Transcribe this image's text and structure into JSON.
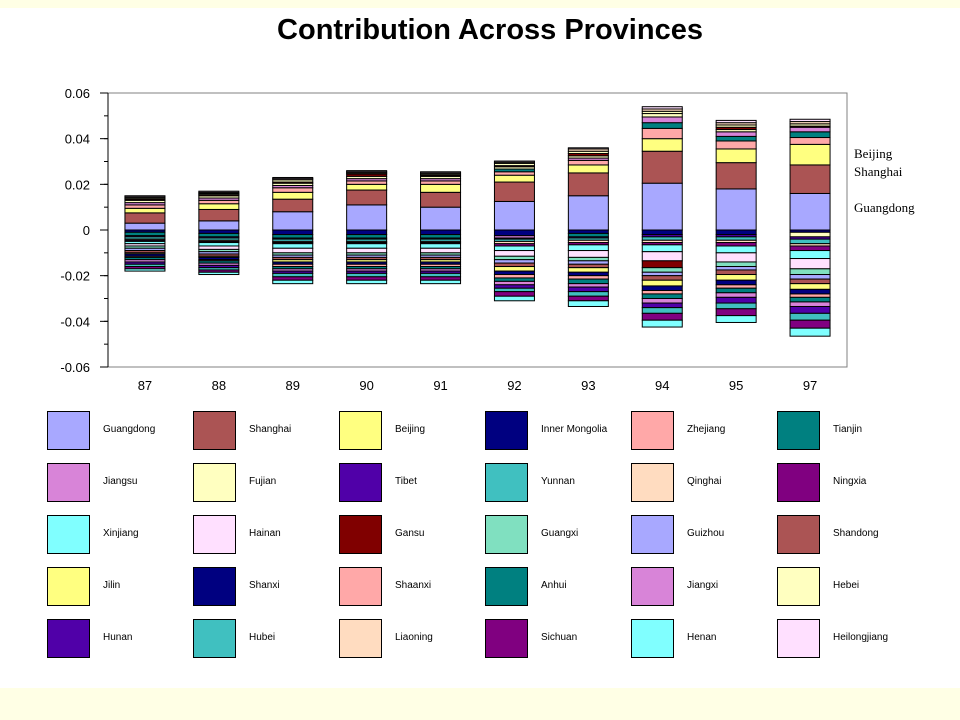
{
  "title": "Contribution Across Provinces",
  "side_labels": [
    "Beijing",
    "Shanghai",
    "Guangdong"
  ],
  "chart_data": {
    "type": "bar",
    "stacked": true,
    "categories": [
      "87",
      "88",
      "89",
      "90",
      "91",
      "92",
      "93",
      "94",
      "95",
      "97"
    ],
    "ylim": [
      -0.06,
      0.06
    ],
    "yticks": [
      -0.06,
      -0.04,
      -0.02,
      0,
      0.02,
      0.04,
      0.06
    ],
    "ytick_labels": [
      "-0.06",
      "-0.04",
      "-0.02",
      "0",
      "0.02",
      "0.04",
      "0.06"
    ],
    "grid": false,
    "series": [
      {
        "name": "Guangdong",
        "color": "#A8A8FF",
        "values": [
          0.003,
          0.004,
          0.008,
          0.011,
          0.01,
          0.0125,
          0.015,
          0.0205,
          0.018,
          0.016
        ]
      },
      {
        "name": "Shanghai",
        "color": "#AB5454",
        "values": [
          0.0045,
          0.005,
          0.0055,
          0.0065,
          0.0065,
          0.0085,
          0.01,
          0.014,
          0.0115,
          0.0125
        ]
      },
      {
        "name": "Beijing",
        "color": "#FFFF80",
        "values": [
          0.002,
          0.0025,
          0.003,
          0.0025,
          0.0035,
          0.003,
          0.0035,
          0.0055,
          0.006,
          0.009
        ]
      },
      {
        "name": "Inner Mongolia",
        "color": "#000080",
        "values": [
          -0.001,
          -0.0015,
          -0.002,
          -0.002,
          -0.002,
          -0.0025,
          -0.0015,
          -0.002,
          -0.002,
          -0.001
        ]
      },
      {
        "name": "Zhejiang",
        "color": "#FFA8A8",
        "values": [
          0.0015,
          0.0015,
          0.002,
          0.0015,
          0.0015,
          0.0015,
          0.002,
          0.0045,
          0.0035,
          0.003
        ]
      },
      {
        "name": "Tianjin",
        "color": "#008080",
        "values": [
          -0.0015,
          -0.0015,
          -0.0015,
          -0.0015,
          -0.0015,
          0.0012,
          -0.0015,
          0.0025,
          0.002,
          0.0025
        ]
      },
      {
        "name": "Jiangsu",
        "color": "#D884D8",
        "values": [
          0.001,
          0.001,
          0.001,
          0.001,
          0.001,
          -0.001,
          0.001,
          0.0025,
          0.002,
          0.002
        ]
      },
      {
        "name": "Fujian",
        "color": "#FFFFC0",
        "values": [
          0.001,
          0.001,
          0.001,
          0.001,
          0.001,
          0.001,
          0.001,
          0.0015,
          0.001,
          -0.002
        ]
      },
      {
        "name": "Tibet",
        "color": "#5000A8",
        "values": [
          -0.0005,
          -0.0005,
          -0.0005,
          -0.0005,
          -0.0005,
          -0.0005,
          -0.0005,
          -0.001,
          -0.001,
          -0.001
        ]
      },
      {
        "name": "Yunnan",
        "color": "#40C0C0",
        "values": [
          -0.001,
          -0.001,
          -0.001,
          -0.001,
          -0.001,
          -0.001,
          -0.001,
          -0.0015,
          -0.0015,
          -0.002
        ]
      },
      {
        "name": "Qinghai",
        "color": "#FFDCC0",
        "values": [
          -0.0005,
          -0.0005,
          -0.0005,
          -0.0005,
          -0.0005,
          -0.001,
          -0.001,
          -0.001,
          -0.001,
          -0.001
        ]
      },
      {
        "name": "Ningxia",
        "color": "#800080",
        "values": [
          -0.0005,
          -0.0005,
          -0.0005,
          -0.0005,
          -0.0005,
          -0.001,
          -0.001,
          -0.001,
          -0.0015,
          -0.002
        ]
      },
      {
        "name": "Xinjiang",
        "color": "#80FFFF",
        "values": [
          -0.001,
          -0.0015,
          -0.002,
          -0.002,
          -0.002,
          -0.002,
          -0.0025,
          -0.003,
          -0.003,
          -0.0035
        ]
      },
      {
        "name": "Hainan",
        "color": "#FFE0FF",
        "values": [
          -0.001,
          -0.0015,
          -0.002,
          -0.002,
          -0.002,
          -0.0025,
          -0.003,
          -0.004,
          -0.004,
          -0.0045
        ]
      },
      {
        "name": "Gansu",
        "color": "#800000",
        "values": [
          0.0005,
          0.0005,
          0.0005,
          0.001,
          0.0005,
          0.0005,
          0.001,
          -0.003,
          0.001,
          0.0005
        ]
      },
      {
        "name": "Guangxi",
        "color": "#80E0C0",
        "values": [
          -0.001,
          -0.001,
          -0.001,
          -0.001,
          -0.001,
          -0.0015,
          -0.0015,
          -0.002,
          -0.002,
          -0.0025
        ]
      },
      {
        "name": "Guizhou",
        "color": "#A8A8FF",
        "values": [
          -0.001,
          -0.001,
          -0.001,
          -0.001,
          -0.001,
          -0.0015,
          -0.0015,
          -0.0015,
          -0.0015,
          -0.002
        ]
      },
      {
        "name": "Shandong",
        "color": "#AB5454",
        "values": [
          -0.001,
          -0.001,
          -0.001,
          -0.001,
          -0.001,
          -0.0015,
          -0.0015,
          -0.002,
          -0.002,
          -0.002
        ]
      },
      {
        "name": "Jilin",
        "color": "#FFFF80",
        "values": [
          -0.0005,
          -0.0005,
          -0.001,
          -0.001,
          -0.001,
          -0.002,
          -0.002,
          -0.0025,
          -0.0025,
          -0.0025
        ]
      },
      {
        "name": "Shanxi",
        "color": "#000080",
        "values": [
          -0.001,
          -0.001,
          -0.001,
          -0.001,
          -0.001,
          -0.0015,
          -0.0015,
          -0.002,
          -0.002,
          -0.002
        ]
      },
      {
        "name": "Shaanxi",
        "color": "#FFA8A8",
        "values": [
          -0.0005,
          -0.0005,
          -0.001,
          -0.001,
          -0.001,
          -0.0015,
          -0.0015,
          -0.0015,
          -0.0015,
          -0.0015
        ]
      },
      {
        "name": "Anhui",
        "color": "#008080",
        "values": [
          -0.001,
          -0.001,
          -0.001,
          -0.001,
          -0.001,
          -0.0015,
          -0.002,
          -0.002,
          -0.002,
          -0.002
        ]
      },
      {
        "name": "Jiangxi",
        "color": "#D884D8",
        "values": [
          -0.001,
          -0.001,
          -0.001,
          -0.001,
          -0.001,
          -0.0015,
          -0.0015,
          -0.002,
          -0.002,
          -0.002
        ]
      },
      {
        "name": "Hebei",
        "color": "#FFFFC0",
        "values": [
          0.0005,
          0.0005,
          0.001,
          0.0005,
          0.0005,
          0.001,
          0.001,
          0.001,
          0.001,
          0.001
        ]
      },
      {
        "name": "Hunan",
        "color": "#5000A8",
        "values": [
          -0.001,
          -0.001,
          -0.001,
          -0.001,
          -0.001,
          -0.0015,
          -0.002,
          -0.002,
          -0.0025,
          -0.003
        ]
      },
      {
        "name": "Hubei",
        "color": "#40C0C0",
        "values": [
          -0.001,
          -0.001,
          -0.0015,
          -0.0015,
          -0.0015,
          -0.0015,
          -0.002,
          -0.0025,
          -0.0025,
          -0.003
        ]
      },
      {
        "name": "Liaoning",
        "color": "#FFDCC0",
        "values": [
          0.0005,
          0.0005,
          0.0005,
          0.0005,
          0.0005,
          0.0005,
          0.001,
          0.001,
          0.001,
          0.001
        ]
      },
      {
        "name": "Sichuan",
        "color": "#800080",
        "values": [
          -0.001,
          -0.001,
          -0.0015,
          -0.0015,
          -0.0015,
          -0.002,
          -0.002,
          -0.003,
          -0.003,
          -0.0035
        ]
      },
      {
        "name": "Henan",
        "color": "#80FFFF",
        "values": [
          -0.001,
          -0.001,
          -0.0015,
          -0.0015,
          -0.0015,
          -0.002,
          -0.0025,
          -0.003,
          -0.003,
          -0.0035
        ]
      },
      {
        "name": "Heilongjiang",
        "color": "#FFE0FF",
        "values": [
          0.0005,
          0.0005,
          0.0005,
          0.0005,
          0.0005,
          0.0005,
          0.0005,
          0.001,
          0.001,
          0.001
        ]
      }
    ]
  }
}
